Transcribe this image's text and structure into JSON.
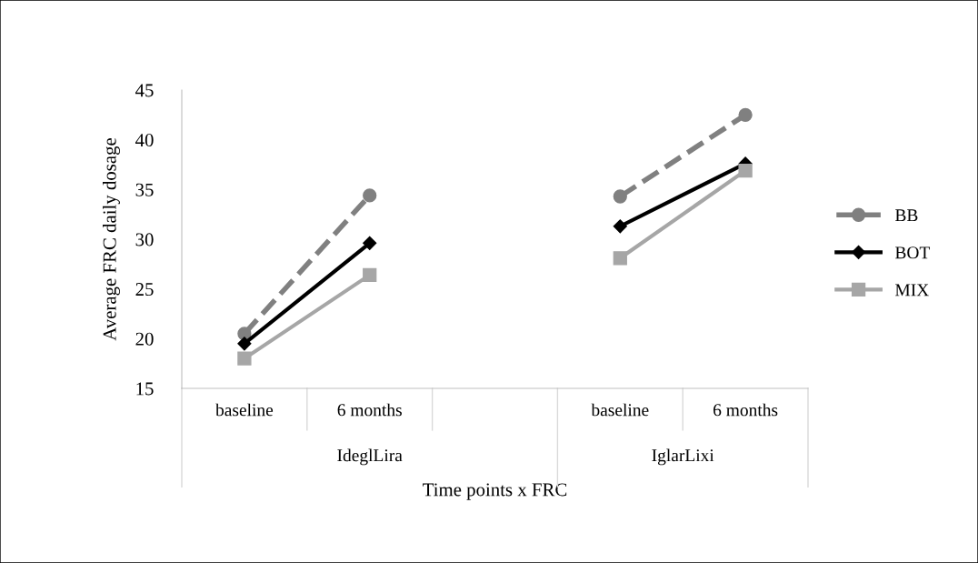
{
  "chart_data": {
    "type": "line",
    "xlabel": "Time points x FRC",
    "ylabel": "Average FRC daily dosage",
    "categories": [
      "baseline",
      "6 months",
      null,
      "baseline",
      "6 months"
    ],
    "annotations": [
      "IdeglLira",
      "IglarLixi"
    ],
    "series": [
      {
        "name": "BB",
        "color": "#808080",
        "values": [
          20.5,
          34.4,
          null,
          34.3,
          42.5
        ],
        "marker": "circle",
        "line_style": "dashed"
      },
      {
        "name": "BOT",
        "color": "#000000",
        "values": [
          19.5,
          29.6,
          null,
          31.3,
          37.6
        ],
        "marker": "diamond",
        "line_style": "solid"
      },
      {
        "name": "MIX",
        "color": "#a6a6a6",
        "values": [
          18.0,
          26.4,
          null,
          28.1,
          36.9
        ],
        "marker": "square",
        "line_style": "solid"
      }
    ],
    "ylim": [
      15,
      45
    ],
    "yticks": [
      15,
      20,
      25,
      30,
      35,
      40,
      45
    ],
    "grid": false,
    "legend": "right"
  }
}
